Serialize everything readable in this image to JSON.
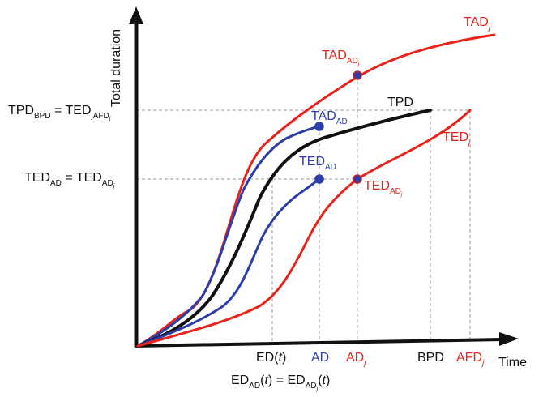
{
  "axes": {
    "y_label": "Total duration",
    "x_label": "Time"
  },
  "colors": {
    "tpd": "#111111",
    "red": "#e8231c",
    "blue": "#2b3da8",
    "text": "#111111",
    "guide": "#9a9a9a"
  },
  "curves": {
    "tad_j": {
      "main": "TAD",
      "sub": "j"
    },
    "tpd": {
      "main": "TPD"
    },
    "ted_j": {
      "main": "TED",
      "sub": "j"
    },
    "tad_ad": {
      "main": "TAD",
      "sub": "AD"
    },
    "ted_ad": {
      "main": "TED",
      "sub": "AD"
    },
    "tad_adj": {
      "main": "TAD",
      "sub": "AD",
      "subsub": "j"
    },
    "ted_adj": {
      "main": "TED",
      "sub": "AD",
      "subsub": "j"
    }
  },
  "y_annotations": {
    "tpd_bpd": {
      "a": "TPD",
      "a_sub": "BPD",
      "eq": " = TED",
      "b_sub": "jAFD",
      "b_subsub": "j"
    },
    "ted_ad": {
      "a": "TED",
      "a_sub": "AD",
      "eq": " = TED",
      "b_sub": "AD",
      "b_subsub": "j"
    }
  },
  "x_ticks": {
    "ed_t": {
      "main": "ED(",
      "ital": "t",
      "close": ")"
    },
    "ad": {
      "main": "AD"
    },
    "ad_j": {
      "main": "AD",
      "sub": "j"
    },
    "bpd": {
      "main": "BPD"
    },
    "afd_j": {
      "main": "AFD",
      "sub": "j"
    }
  },
  "bottom_equation": {
    "a": "ED",
    "a_sub": "AD",
    "a_open": "(",
    "a_ital": "t",
    "a_close": ")",
    "eq": " = ED",
    "b_sub": "AD",
    "b_subsub": "j",
    "b_open": "(",
    "b_ital": "t",
    "b_close": ")"
  }
}
